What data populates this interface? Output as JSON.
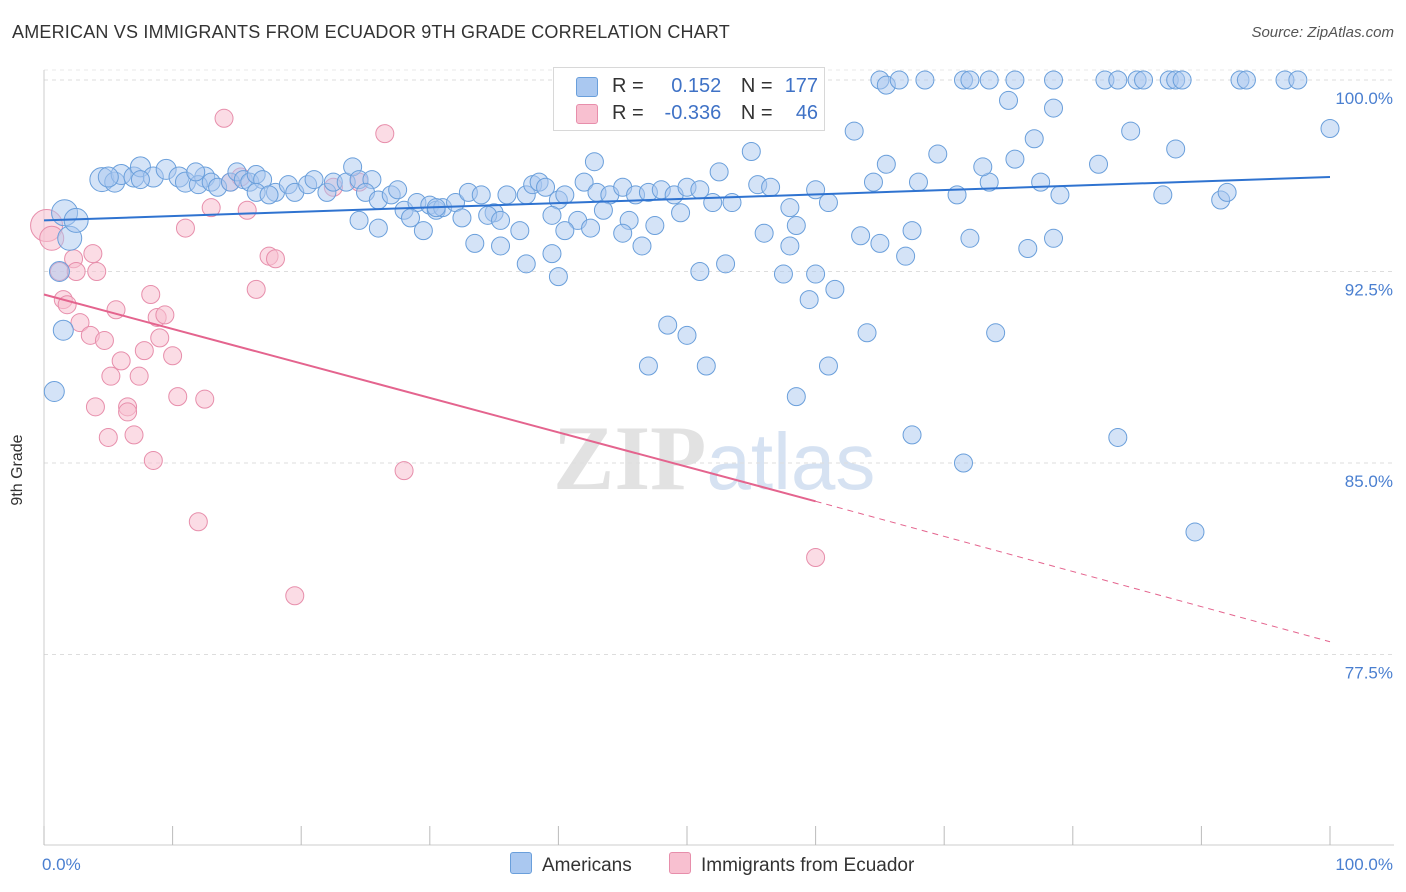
{
  "header": {
    "title": "AMERICAN VS IMMIGRANTS FROM ECUADOR 9TH GRADE CORRELATION CHART",
    "source": "Source: ZipAtlas.com"
  },
  "watermark": {
    "zip": "ZIP",
    "atlas": "atlas"
  },
  "legend_top": {
    "rows": [
      {
        "r_label": "R =",
        "r_value": "0.152",
        "n_label": "N =",
        "n_value": "177"
      },
      {
        "r_label": "R =",
        "r_value": "-0.336",
        "n_label": "N =",
        "n_value": "46"
      }
    ]
  },
  "legend_bottom": {
    "items": [
      {
        "label": "Americans"
      },
      {
        "label": "Immigrants from Ecuador"
      }
    ]
  },
  "colors": {
    "americans_fill": "#aac8f0",
    "americans_stroke": "#6a9fdb",
    "americans_line": "#2f73d0",
    "ecuador_fill": "#f8c0d0",
    "ecuador_stroke": "#e78eab",
    "ecuador_line": "#e4648e",
    "grid": "#dddddd",
    "tick_label": "#4a7fd0"
  },
  "chart_data": {
    "type": "scatter",
    "title": "AMERICAN VS IMMIGRANTS FROM ECUADOR 9TH GRADE CORRELATION CHART",
    "xlabel": "",
    "ylabel": "9th Grade",
    "xlim": [
      0,
      100
    ],
    "ylim": [
      70,
      101.5
    ],
    "x_tick_labels": [
      "0.0%",
      "100.0%"
    ],
    "y_ticks": [
      {
        "value": 100.0,
        "label": "100.0%"
      },
      {
        "value": 92.5,
        "label": "92.5%"
      },
      {
        "value": 85.0,
        "label": "85.0%"
      },
      {
        "value": 77.5,
        "label": "77.5%"
      }
    ],
    "grid": "horizontal dashed",
    "legend": "bottom-center",
    "series": [
      {
        "name": "Americans",
        "r": 0.152,
        "n": 177,
        "trend": {
          "x0": 0,
          "y0": 94.5,
          "x1": 100,
          "y1": 96.2
        },
        "points": [
          [
            1.6,
            94.8,
            13
          ],
          [
            2.0,
            93.8,
            12
          ],
          [
            2.5,
            94.5,
            12
          ],
          [
            1.2,
            92.5,
            10
          ],
          [
            1.5,
            90.2,
            10
          ],
          [
            0.8,
            87.8,
            10
          ],
          [
            4.5,
            96.1,
            12
          ],
          [
            5.5,
            96.0,
            10
          ],
          [
            6.0,
            96.3,
            10
          ],
          [
            7.0,
            96.2,
            10
          ],
          [
            7.5,
            96.6,
            10
          ],
          [
            8.5,
            96.2,
            10
          ],
          [
            9.5,
            96.5,
            10
          ],
          [
            10.5,
            96.2,
            10
          ],
          [
            11.0,
            96.0,
            10
          ],
          [
            12.5,
            96.2,
            10
          ],
          [
            12.0,
            95.9,
            9
          ],
          [
            13.0,
            96.0,
            9
          ],
          [
            13.5,
            95.8,
            9
          ],
          [
            14.5,
            96.0,
            9
          ],
          [
            15.0,
            96.4,
            9
          ],
          [
            15.5,
            96.1,
            9
          ],
          [
            16.0,
            96.0,
            9
          ],
          [
            16.5,
            96.3,
            9
          ],
          [
            5.0,
            96.2,
            10
          ],
          [
            7.5,
            96.1,
            9
          ],
          [
            11.8,
            96.4,
            9
          ],
          [
            17.0,
            96.1,
            9
          ],
          [
            18.0,
            95.6,
            9
          ],
          [
            16.5,
            95.6,
            9
          ],
          [
            17.5,
            95.5,
            9
          ],
          [
            19.0,
            95.9,
            9
          ],
          [
            19.5,
            95.6,
            9
          ],
          [
            20.5,
            95.9,
            9
          ],
          [
            21.0,
            96.1,
            9
          ],
          [
            22.0,
            95.6,
            9
          ],
          [
            22.5,
            96.0,
            9
          ],
          [
            23.5,
            96.0,
            9
          ],
          [
            24.0,
            96.6,
            9
          ],
          [
            24.5,
            96.1,
            9
          ],
          [
            25.5,
            96.1,
            9
          ],
          [
            25.0,
            95.6,
            9
          ],
          [
            26.0,
            95.3,
            9
          ],
          [
            27.0,
            95.5,
            9
          ],
          [
            27.5,
            95.7,
            9
          ],
          [
            28.0,
            94.9,
            9
          ],
          [
            29.0,
            95.2,
            9
          ],
          [
            30.0,
            95.1,
            9
          ],
          [
            30.5,
            94.9,
            9
          ],
          [
            31.0,
            95.0,
            9
          ],
          [
            32.0,
            95.2,
            9
          ],
          [
            33.0,
            95.6,
            9
          ],
          [
            34.0,
            95.5,
            9
          ],
          [
            35.0,
            94.8,
            9
          ],
          [
            36.0,
            95.5,
            9
          ],
          [
            37.5,
            95.5,
            9
          ],
          [
            38.0,
            95.9,
            9
          ],
          [
            38.5,
            96.0,
            9
          ],
          [
            39.0,
            95.8,
            9
          ],
          [
            40.0,
            95.3,
            9
          ],
          [
            40.5,
            95.5,
            9
          ],
          [
            42.0,
            96.0,
            9
          ],
          [
            43.0,
            95.6,
            9
          ],
          [
            44.0,
            95.5,
            9
          ],
          [
            45.0,
            95.8,
            9
          ],
          [
            46.0,
            95.5,
            9
          ],
          [
            47.0,
            95.6,
            9
          ],
          [
            48.0,
            95.7,
            9
          ],
          [
            49.0,
            95.5,
            9
          ],
          [
            50.0,
            95.8,
            9
          ],
          [
            51.0,
            95.7,
            9
          ],
          [
            52.5,
            96.4,
            9
          ],
          [
            53.5,
            95.2,
            9
          ],
          [
            55.5,
            95.9,
            9
          ],
          [
            56.5,
            95.8,
            9
          ],
          [
            58.0,
            95.0,
            9
          ],
          [
            60.0,
            95.7,
            9
          ],
          [
            61.0,
            95.2,
            9
          ],
          [
            64.5,
            96.0,
            9
          ],
          [
            68.0,
            96.0,
            9
          ],
          [
            71.0,
            95.5,
            9
          ],
          [
            73.5,
            96.0,
            9
          ],
          [
            77.5,
            96.0,
            9
          ],
          [
            79.0,
            95.5,
            9
          ],
          [
            87.0,
            95.5,
            9
          ],
          [
            91.5,
            95.3,
            9
          ],
          [
            92.0,
            95.6,
            9
          ],
          [
            42.8,
            96.8,
            9
          ],
          [
            55.0,
            97.2,
            9
          ],
          [
            65.5,
            96.7,
            9
          ],
          [
            69.5,
            97.1,
            9
          ],
          [
            73.0,
            96.6,
            9
          ],
          [
            75.5,
            96.9,
            9
          ],
          [
            82.0,
            96.7,
            9
          ],
          [
            84.5,
            98.0,
            9
          ],
          [
            88.0,
            97.3,
            9
          ],
          [
            63.0,
            98.0,
            9
          ],
          [
            77.0,
            97.7,
            9
          ],
          [
            78.5,
            98.9,
            9
          ],
          [
            75.0,
            99.2,
            9
          ],
          [
            54.5,
            98.4,
            9
          ],
          [
            30.5,
            95.0,
            9
          ],
          [
            32.5,
            94.6,
            9
          ],
          [
            34.5,
            94.7,
            9
          ],
          [
            35.5,
            94.5,
            9
          ],
          [
            37.0,
            94.1,
            9
          ],
          [
            39.5,
            94.7,
            9
          ],
          [
            41.5,
            94.5,
            9
          ],
          [
            43.5,
            94.9,
            9
          ],
          [
            45.5,
            94.5,
            9
          ],
          [
            47.5,
            94.3,
            9
          ],
          [
            49.5,
            94.8,
            9
          ],
          [
            52.0,
            95.2,
            9
          ],
          [
            24.5,
            94.5,
            9
          ],
          [
            26.0,
            94.2,
            9
          ],
          [
            28.5,
            94.6,
            9
          ],
          [
            29.5,
            94.1,
            9
          ],
          [
            33.5,
            93.6,
            9
          ],
          [
            35.5,
            93.5,
            9
          ],
          [
            40.5,
            94.1,
            9
          ],
          [
            42.5,
            94.2,
            9
          ],
          [
            45.0,
            94.0,
            9
          ],
          [
            46.5,
            93.5,
            9
          ],
          [
            56.0,
            94.0,
            9
          ],
          [
            58.0,
            93.5,
            9
          ],
          [
            58.5,
            94.3,
            9
          ],
          [
            63.5,
            93.9,
            9
          ],
          [
            65.0,
            93.6,
            9
          ],
          [
            67.5,
            94.1,
            9
          ],
          [
            72.0,
            93.8,
            9
          ],
          [
            76.5,
            93.4,
            9
          ],
          [
            78.5,
            93.8,
            9
          ],
          [
            37.5,
            92.8,
            9
          ],
          [
            39.5,
            93.2,
            9
          ],
          [
            40.0,
            92.3,
            9
          ],
          [
            51.0,
            92.5,
            9
          ],
          [
            53.0,
            92.8,
            9
          ],
          [
            57.5,
            92.4,
            9
          ],
          [
            60.0,
            92.4,
            9
          ],
          [
            61.5,
            91.8,
            9
          ],
          [
            59.5,
            91.4,
            9
          ],
          [
            67.0,
            93.1,
            9
          ],
          [
            48.5,
            90.4,
            9
          ],
          [
            50.0,
            90.0,
            9
          ],
          [
            64.0,
            90.1,
            9
          ],
          [
            74.0,
            90.1,
            9
          ],
          [
            47.0,
            88.8,
            9
          ],
          [
            51.5,
            88.8,
            9
          ],
          [
            61.0,
            88.8,
            9
          ],
          [
            58.5,
            87.6,
            9
          ],
          [
            67.5,
            86.1,
            9
          ],
          [
            71.5,
            85.0,
            9
          ],
          [
            83.5,
            86.0,
            9
          ],
          [
            89.5,
            82.3,
            9
          ],
          [
            59.5,
            100.0,
            9
          ],
          [
            65.0,
            100.0,
            9
          ],
          [
            65.5,
            99.8,
            9
          ],
          [
            66.5,
            100.0,
            9
          ],
          [
            68.5,
            100.0,
            9
          ],
          [
            71.5,
            100.0,
            9
          ],
          [
            72.0,
            100.0,
            9
          ],
          [
            73.5,
            100.0,
            9
          ],
          [
            75.5,
            100.0,
            9
          ],
          [
            78.5,
            100.0,
            9
          ],
          [
            82.5,
            100.0,
            9
          ],
          [
            83.5,
            100.0,
            9
          ],
          [
            85.0,
            100.0,
            9
          ],
          [
            85.5,
            100.0,
            9
          ],
          [
            87.5,
            100.0,
            9
          ],
          [
            88.0,
            100.0,
            9
          ],
          [
            88.5,
            100.0,
            9
          ],
          [
            93.0,
            100.0,
            9
          ],
          [
            93.5,
            100.0,
            9
          ],
          [
            96.5,
            100.0,
            9
          ],
          [
            97.5,
            100.0,
            9
          ],
          [
            100.0,
            98.1,
            9
          ]
        ]
      },
      {
        "name": "Immigrants from Ecuador",
        "r": -0.336,
        "n": 46,
        "trend": {
          "x0": 0,
          "y0": 91.6,
          "x1": 60,
          "y1": 83.5,
          "dashed_to": {
            "x": 100,
            "y": 78.0
          }
        },
        "points": [
          [
            0.2,
            94.3,
            16
          ],
          [
            0.6,
            93.8,
            12
          ],
          [
            1.2,
            92.5,
            9
          ],
          [
            1.5,
            91.4,
            9
          ],
          [
            1.8,
            91.2,
            9
          ],
          [
            2.3,
            93.0,
            9
          ],
          [
            2.5,
            92.5,
            9
          ],
          [
            2.8,
            90.5,
            9
          ],
          [
            3.6,
            90.0,
            9
          ],
          [
            3.8,
            93.2,
            9
          ],
          [
            4.1,
            92.5,
            9
          ],
          [
            4.7,
            89.8,
            9
          ],
          [
            5.2,
            88.4,
            9
          ],
          [
            5.6,
            91.0,
            9
          ],
          [
            6.0,
            89.0,
            9
          ],
          [
            6.5,
            87.2,
            9
          ],
          [
            7.0,
            86.1,
            9
          ],
          [
            7.4,
            88.4,
            9
          ],
          [
            7.8,
            89.4,
            9
          ],
          [
            8.3,
            91.6,
            9
          ],
          [
            8.8,
            90.7,
            9
          ],
          [
            9.0,
            89.9,
            9
          ],
          [
            9.4,
            90.8,
            9
          ],
          [
            10.0,
            89.2,
            9
          ],
          [
            10.4,
            87.6,
            9
          ],
          [
            11.0,
            94.2,
            9
          ],
          [
            12.0,
            82.7,
            9
          ],
          [
            12.5,
            87.5,
            9
          ],
          [
            13.0,
            95.0,
            9
          ],
          [
            14.0,
            98.5,
            9
          ],
          [
            14.5,
            96.0,
            9
          ],
          [
            15.3,
            96.2,
            9
          ],
          [
            15.8,
            94.9,
            9
          ],
          [
            16.5,
            91.8,
            9
          ],
          [
            17.5,
            93.1,
            9
          ],
          [
            18.0,
            93.0,
            9
          ],
          [
            19.5,
            79.8,
            9
          ],
          [
            22.5,
            95.8,
            9
          ],
          [
            24.5,
            96.0,
            9
          ],
          [
            26.5,
            97.9,
            9
          ],
          [
            28.0,
            84.7,
            9
          ],
          [
            60.0,
            81.3,
            9
          ],
          [
            4.0,
            87.2,
            9
          ],
          [
            5.0,
            86.0,
            9
          ],
          [
            6.5,
            87.0,
            9
          ],
          [
            8.5,
            85.1,
            9
          ]
        ]
      }
    ]
  }
}
